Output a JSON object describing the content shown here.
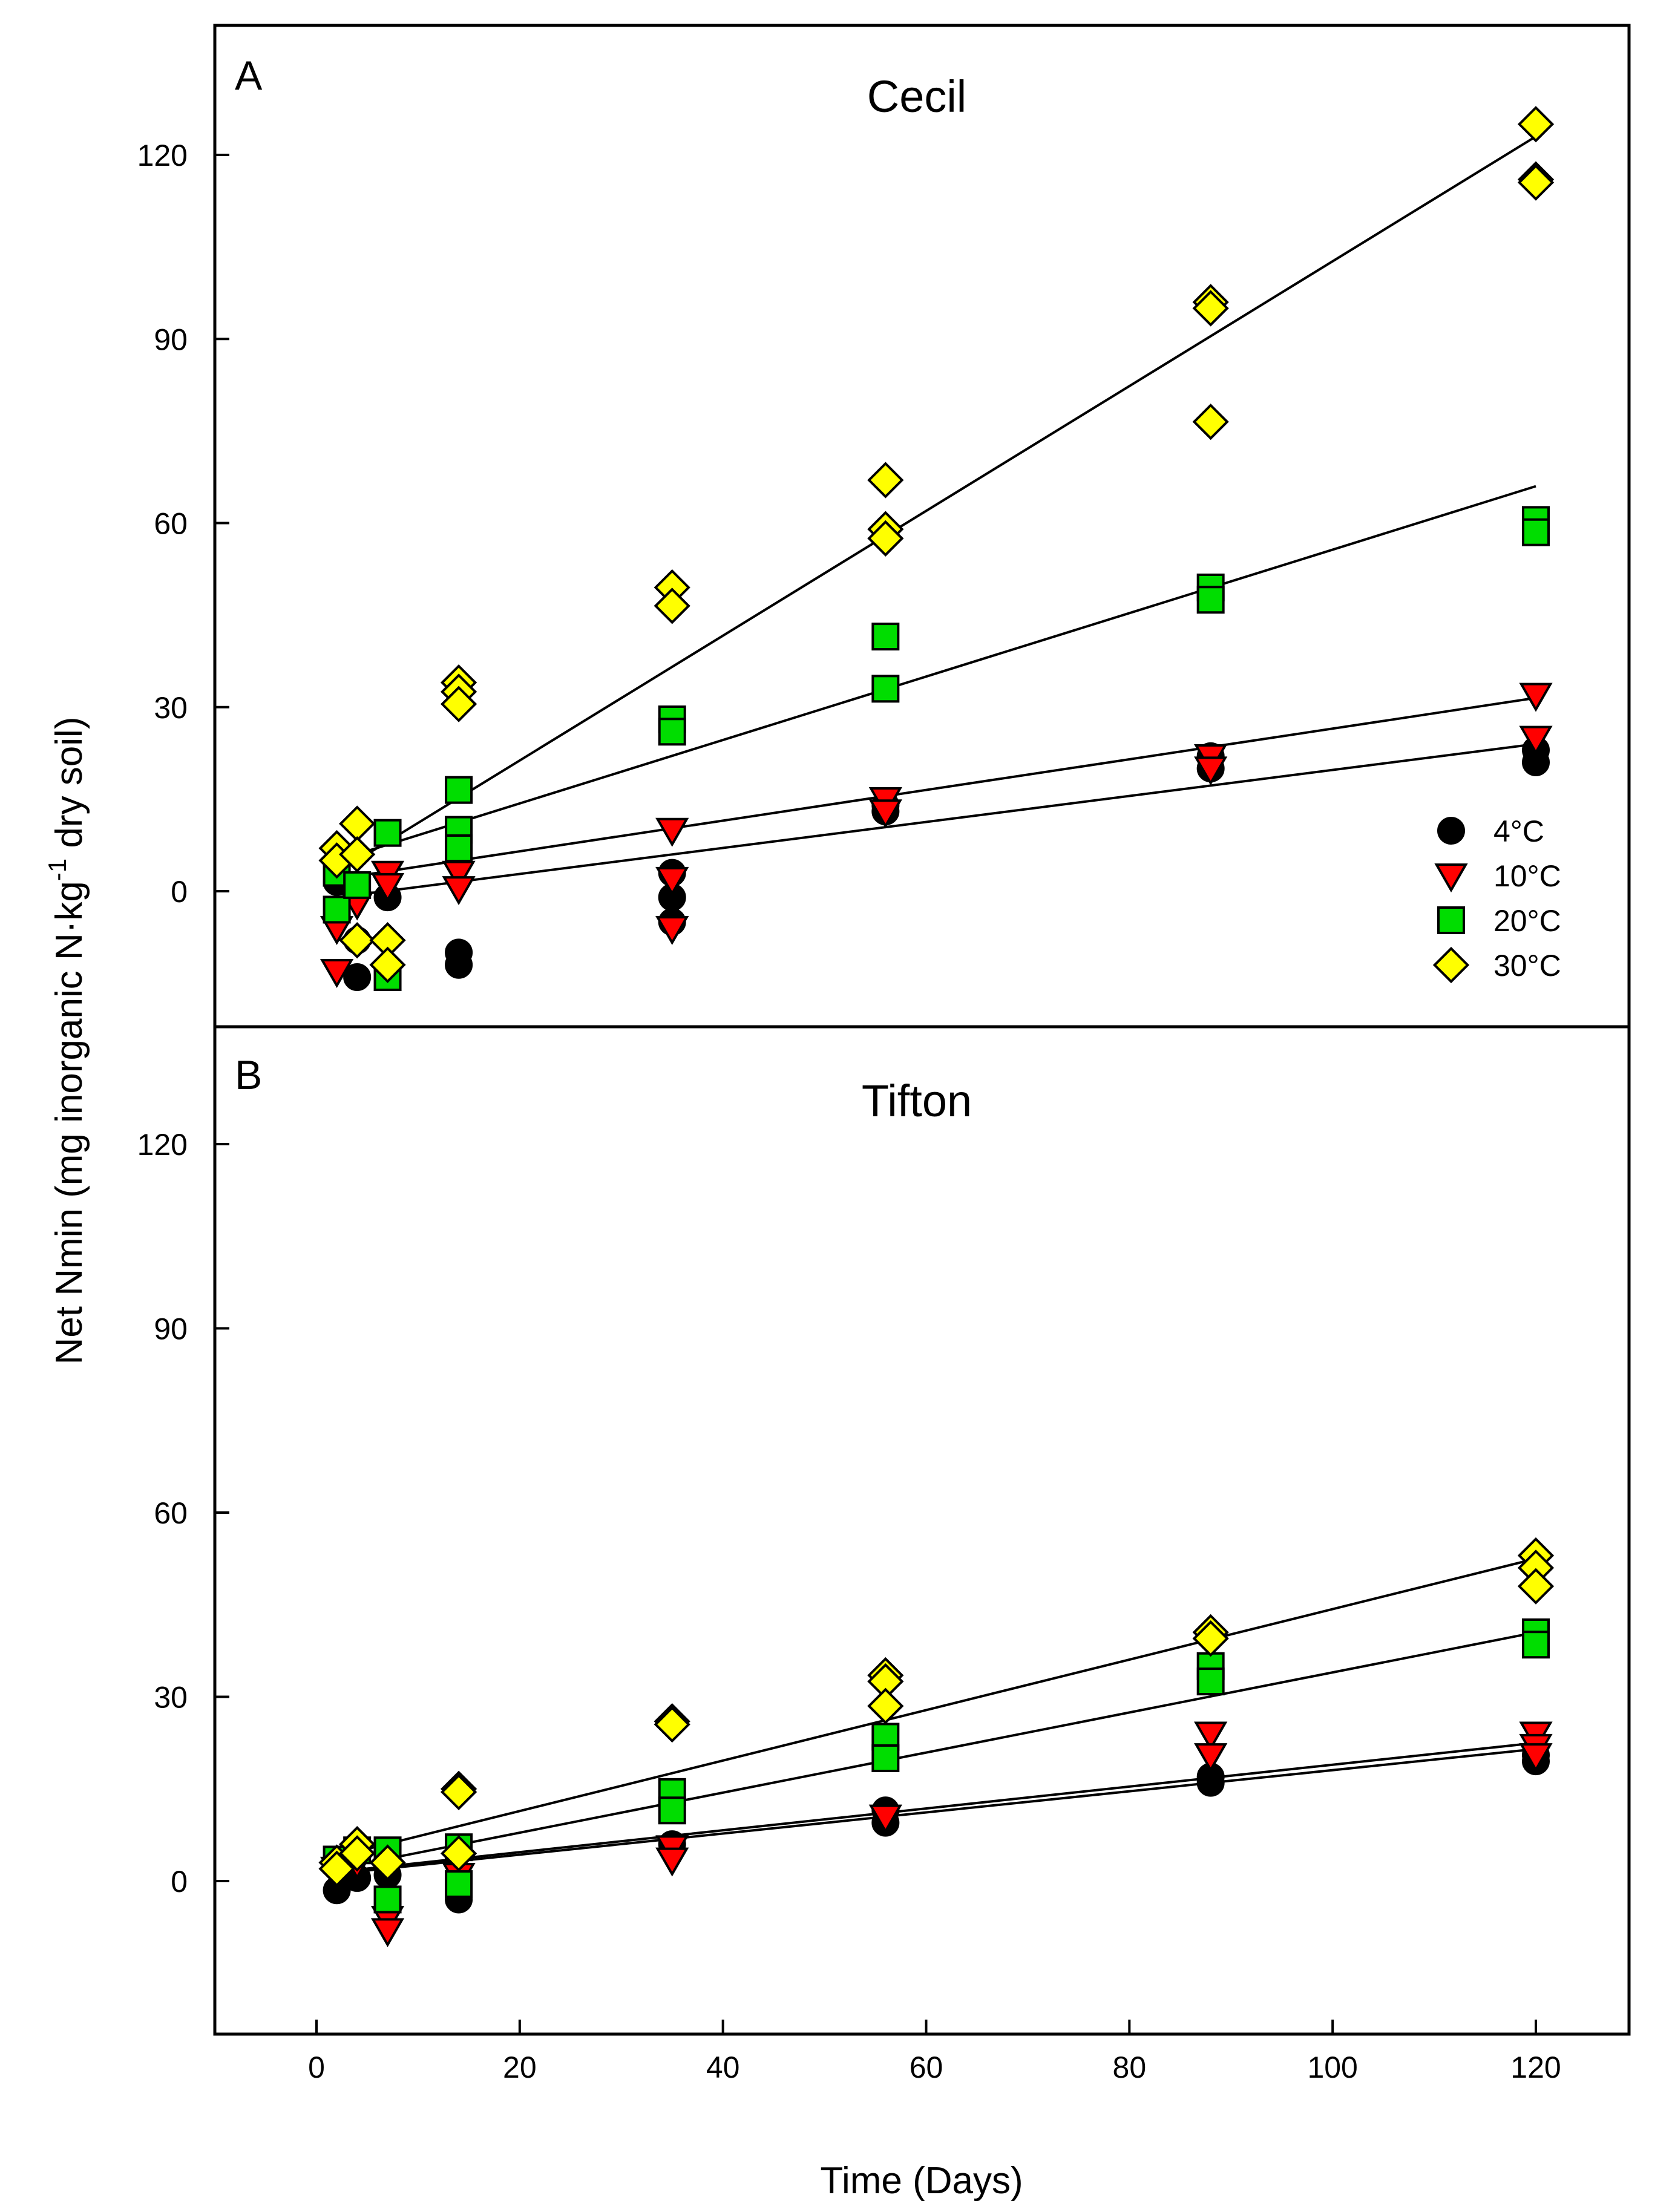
{
  "chart_data": [
    {
      "type": "scatter",
      "panel_label": "A",
      "title": "Cecil",
      "xlabel": "Time (Days)",
      "ylabel": "Net Nmin  (mg inorganic N·kg-1 dry soil)",
      "xlim": [
        -10,
        130
      ],
      "ylim": [
        -20,
        140
      ],
      "xticks": [
        0,
        20,
        40,
        60,
        80,
        100,
        120
      ],
      "yticks": [
        0,
        30,
        60,
        90,
        120
      ],
      "legend_position": "lower-right",
      "series": [
        {
          "name": "4°C",
          "marker": "circle",
          "color": "#000000",
          "points": [
            [
              2,
              1.5
            ],
            [
              4,
              -14
            ],
            [
              4,
              -8
            ],
            [
              7,
              -1
            ],
            [
              14,
              -10
            ],
            [
              14,
              -12
            ],
            [
              35,
              3
            ],
            [
              35,
              -1
            ],
            [
              35,
              -5
            ],
            [
              56,
              13
            ],
            [
              56,
              14
            ],
            [
              88,
              22
            ],
            [
              88,
              20
            ],
            [
              120,
              21
            ],
            [
              120,
              23
            ]
          ],
          "fit": [
            [
              2,
              -1
            ],
            [
              120,
              24
            ]
          ]
        },
        {
          "name": "10°C",
          "marker": "triangle-down",
          "color": "#ff0000",
          "points": [
            [
              2,
              -13
            ],
            [
              2,
              -6
            ],
            [
              4,
              -2
            ],
            [
              7,
              3
            ],
            [
              7,
              1
            ],
            [
              14,
              3
            ],
            [
              14,
              0.5
            ],
            [
              35,
              10
            ],
            [
              35,
              2
            ],
            [
              35,
              -6
            ],
            [
              56,
              15
            ],
            [
              56,
              13
            ],
            [
              88,
              22
            ],
            [
              88,
              20
            ],
            [
              120,
              32
            ],
            [
              120,
              25
            ]
          ],
          "fit": [
            [
              2,
              2
            ],
            [
              120,
              31.5
            ]
          ]
        },
        {
          "name": "20°C",
          "marker": "square",
          "color": "#00dd00",
          "points": [
            [
              2,
              -3
            ],
            [
              2,
              3
            ],
            [
              4,
              1
            ],
            [
              7,
              9.5
            ],
            [
              7,
              -14
            ],
            [
              14,
              16.5
            ],
            [
              14,
              10
            ],
            [
              14,
              7
            ],
            [
              35,
              28
            ],
            [
              35,
              26
            ],
            [
              56,
              41.5
            ],
            [
              56,
              33
            ],
            [
              88,
              49.5
            ],
            [
              88,
              47.5
            ],
            [
              120,
              60.5
            ],
            [
              120,
              58.5
            ]
          ],
          "fit": [
            [
              2,
              5
            ],
            [
              120,
              66
            ]
          ]
        },
        {
          "name": "30°C",
          "marker": "diamond",
          "color": "#ffff00",
          "points": [
            [
              2,
              7
            ],
            [
              2,
              5
            ],
            [
              4,
              11
            ],
            [
              4,
              6
            ],
            [
              4,
              -8
            ],
            [
              7,
              -8
            ],
            [
              7,
              -12
            ],
            [
              14,
              34
            ],
            [
              14,
              32.5
            ],
            [
              14,
              30.5
            ],
            [
              35,
              49.5
            ],
            [
              35,
              46.5
            ],
            [
              56,
              67
            ],
            [
              56,
              59
            ],
            [
              56,
              57.5
            ],
            [
              88,
              96
            ],
            [
              88,
              95
            ],
            [
              88,
              76.5
            ],
            [
              120,
              125
            ],
            [
              120,
              116
            ],
            [
              120,
              115.5
            ]
          ],
          "fit": [
            [
              2,
              3
            ],
            [
              120,
              123
            ]
          ]
        }
      ]
    },
    {
      "type": "scatter",
      "panel_label": "B",
      "title": "Tifton",
      "xlabel": "Time (Days)",
      "ylabel": "Net Nmin  (mg inorganic N·kg-1 dry soil)",
      "xlim": [
        -10,
        130
      ],
      "ylim": [
        -21,
        142
      ],
      "xticks": [
        0,
        20,
        40,
        60,
        80,
        100,
        120
      ],
      "yticks": [
        0,
        30,
        60,
        90,
        120
      ],
      "series": [
        {
          "name": "4°C",
          "marker": "circle",
          "color": "#000000",
          "points": [
            [
              2,
              -1.5
            ],
            [
              4,
              0.5
            ],
            [
              7,
              1
            ],
            [
              14,
              -3
            ],
            [
              35,
              6
            ],
            [
              56,
              11.5
            ],
            [
              56,
              9.5
            ],
            [
              88,
              17
            ],
            [
              88,
              16
            ],
            [
              120,
              19.5
            ],
            [
              120,
              20.5
            ]
          ],
          "fit": [
            [
              2,
              1.2
            ],
            [
              120,
              21.5
            ]
          ]
        },
        {
          "name": "10°C",
          "marker": "triangle-down",
          "color": "#ff0000",
          "points": [
            [
              2,
              2
            ],
            [
              4,
              3
            ],
            [
              7,
              -6
            ],
            [
              7,
              -8
            ],
            [
              14,
              1
            ],
            [
              35,
              5.5
            ],
            [
              35,
              3.5
            ],
            [
              56,
              10.5
            ],
            [
              88,
              24
            ],
            [
              88,
              20.5
            ],
            [
              120,
              24
            ],
            [
              120,
              22
            ],
            [
              120,
              20.5
            ]
          ],
          "fit": [
            [
              2,
              1.5
            ],
            [
              120,
              22.5
            ]
          ]
        },
        {
          "name": "20°C",
          "marker": "square",
          "color": "#00dd00",
          "points": [
            [
              2,
              3.5
            ],
            [
              4,
              5
            ],
            [
              7,
              5
            ],
            [
              7,
              -3
            ],
            [
              14,
              5.5
            ],
            [
              14,
              -0.5
            ],
            [
              35,
              14.5
            ],
            [
              35,
              11.5
            ],
            [
              56,
              23.5
            ],
            [
              56,
              20
            ],
            [
              88,
              35
            ],
            [
              88,
              32.5
            ],
            [
              120,
              40.5
            ],
            [
              120,
              38.5
            ]
          ],
          "fit": [
            [
              2,
              2
            ],
            [
              120,
              40.5
            ]
          ]
        },
        {
          "name": "30°C",
          "marker": "diamond",
          "color": "#ffff00",
          "points": [
            [
              2,
              3
            ],
            [
              2,
              2
            ],
            [
              4,
              6
            ],
            [
              4,
              4.5
            ],
            [
              7,
              3
            ],
            [
              14,
              15
            ],
            [
              14,
              14.5
            ],
            [
              14,
              4.5
            ],
            [
              35,
              26
            ],
            [
              35,
              25.5
            ],
            [
              56,
              33.5
            ],
            [
              56,
              32.5
            ],
            [
              56,
              28.5
            ],
            [
              88,
              40.5
            ],
            [
              88,
              39.5
            ],
            [
              120,
              53
            ],
            [
              120,
              51
            ],
            [
              120,
              48
            ]
          ],
          "fit": [
            [
              2,
              4
            ],
            [
              120,
              52.5
            ]
          ]
        }
      ]
    }
  ],
  "labels": {
    "ylabel_main": "Net Nmin  (mg inorganic N·kg",
    "ylabel_sup": "-1",
    "ylabel_tail": " dry soil)"
  }
}
